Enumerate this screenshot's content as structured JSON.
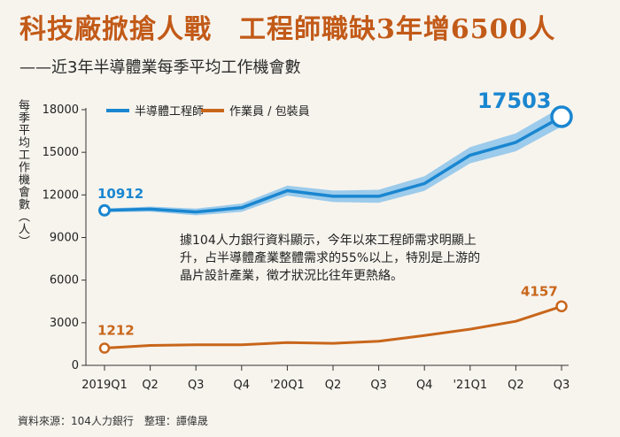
{
  "title": "科技廠掀搶人戰　工程師職缺3年增6500人",
  "subtitle": "——近3年半導體業每季平均工作機會數",
  "ylabel": "每季平均工作機會數（人）",
  "source": "資料來源：104人力銀行　整理：譚偉晟",
  "annotation": "據104人力銀行資料顯示，今年以來工程師需求明顯上升，占半導體產業整體需求的55%以上，特別是上游的晶片設計產業，徵才狀況比往年更熱絡。",
  "colors": {
    "engineer": "#1a86d0",
    "engineer_band": "#8cc3ea",
    "operator": "#c8661b",
    "title": "#c25a18"
  },
  "chart_data": {
    "type": "line",
    "categories": [
      "2019Q1",
      "Q2",
      "Q3",
      "Q4",
      "'20Q1",
      "Q2",
      "Q3",
      "Q4",
      "'21Q1",
      "Q2",
      "Q3"
    ],
    "series": [
      {
        "name": "半導體工程師",
        "values": [
          10912,
          11000,
          10800,
          11100,
          12300,
          11900,
          11900,
          12800,
          14800,
          15700,
          17503
        ]
      },
      {
        "name": "作業員 / 包裝員",
        "values": [
          1212,
          1400,
          1450,
          1450,
          1600,
          1550,
          1700,
          2100,
          2550,
          3100,
          4157
        ]
      }
    ],
    "value_labels": {
      "engineer_start": "10912",
      "engineer_end": "17503",
      "operator_start": "1212",
      "operator_end": "4157"
    },
    "yticks": [
      "0",
      "3000",
      "6000",
      "9000",
      "12000",
      "15000",
      "18000"
    ],
    "ylim": [
      0,
      18000
    ],
    "legend_position": "top-left"
  }
}
